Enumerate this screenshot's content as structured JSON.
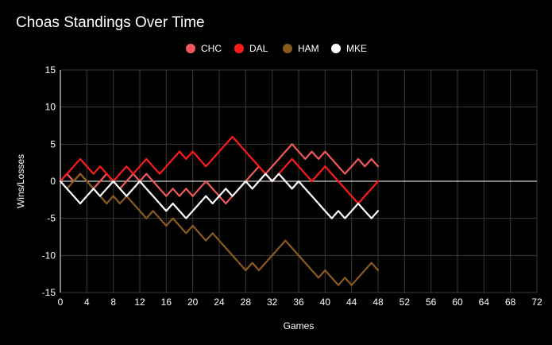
{
  "chart_data": {
    "type": "line",
    "title": "Choas Standings Over Time",
    "xlabel": "Games",
    "ylabel": "Wins/Losses",
    "xlim": [
      0,
      72
    ],
    "ylim": [
      -15,
      15
    ],
    "xticks": [
      0,
      4,
      8,
      12,
      16,
      20,
      24,
      28,
      32,
      36,
      40,
      44,
      48,
      52,
      56,
      60,
      64,
      68,
      72
    ],
    "yticks": [
      -15,
      -10,
      -5,
      0,
      5,
      10,
      15
    ],
    "legend_position": "top-center",
    "grid": true,
    "series": [
      {
        "name": "CHC",
        "color": "#f05a5a",
        "values": [
          0,
          1,
          0,
          1,
          0,
          -1,
          0,
          1,
          0,
          -1,
          0,
          1,
          0,
          1,
          0,
          -1,
          -2,
          -1,
          -2,
          -1,
          -2,
          -1,
          0,
          -1,
          -2,
          -3,
          -2,
          -1,
          0,
          1,
          2,
          1,
          2,
          3,
          4,
          5,
          4,
          3,
          4,
          3,
          4,
          3,
          2,
          1,
          2,
          3,
          2,
          3,
          2
        ]
      },
      {
        "name": "DAL",
        "color": "#ff1a1a",
        "values": [
          0,
          1,
          2,
          3,
          2,
          1,
          2,
          1,
          0,
          1,
          2,
          1,
          2,
          3,
          2,
          1,
          2,
          3,
          4,
          3,
          4,
          3,
          2,
          3,
          4,
          5,
          6,
          5,
          4,
          3,
          2,
          1,
          0,
          1,
          2,
          3,
          2,
          1,
          0,
          1,
          2,
          1,
          0,
          -1,
          -2,
          -3,
          -2,
          -1,
          0
        ]
      },
      {
        "name": "HAM",
        "color": "#8b5a1e",
        "values": [
          0,
          -1,
          0,
          1,
          0,
          -1,
          -2,
          -3,
          -2,
          -3,
          -2,
          -3,
          -4,
          -5,
          -4,
          -5,
          -6,
          -5,
          -6,
          -7,
          -6,
          -7,
          -8,
          -7,
          -8,
          -9,
          -10,
          -11,
          -12,
          -11,
          -12,
          -11,
          -10,
          -9,
          -8,
          -9,
          -10,
          -11,
          -12,
          -13,
          -12,
          -13,
          -14,
          -13,
          -14,
          -13,
          -12,
          -11,
          -12
        ]
      },
      {
        "name": "MKE",
        "color": "#ffffff",
        "values": [
          0,
          -1,
          -2,
          -3,
          -2,
          -1,
          -2,
          -1,
          0,
          -1,
          -2,
          -1,
          0,
          -1,
          -2,
          -3,
          -4,
          -3,
          -4,
          -5,
          -4,
          -3,
          -2,
          -3,
          -2,
          -1,
          -2,
          -1,
          0,
          -1,
          0,
          1,
          0,
          1,
          0,
          -1,
          0,
          -1,
          -2,
          -3,
          -4,
          -5,
          -4,
          -5,
          -4,
          -3,
          -4,
          -5,
          -4
        ]
      }
    ]
  }
}
